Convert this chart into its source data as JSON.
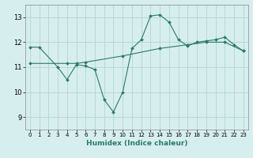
{
  "title": "",
  "xlabel": "Humidex (Indice chaleur)",
  "ylabel": "",
  "bg_color": "#d7eeee",
  "grid_color": "#b8d8d8",
  "line_color": "#2a7a6a",
  "xlim": [
    -0.5,
    23.5
  ],
  "ylim": [
    8.5,
    13.5
  ],
  "yticks": [
    9,
    10,
    11,
    12,
    13
  ],
  "xticks": [
    0,
    1,
    2,
    3,
    4,
    5,
    6,
    7,
    8,
    9,
    10,
    11,
    12,
    13,
    14,
    15,
    16,
    17,
    18,
    19,
    20,
    21,
    22,
    23
  ],
  "line1_x": [
    0,
    1,
    3,
    4,
    5,
    6,
    7,
    8,
    9,
    10,
    11,
    12,
    13,
    14,
    15,
    16,
    17,
    18,
    19,
    20,
    21,
    22,
    23
  ],
  "line1_y": [
    11.8,
    11.8,
    11.0,
    10.5,
    11.1,
    11.05,
    10.9,
    9.7,
    9.2,
    10.0,
    11.75,
    12.1,
    13.05,
    13.1,
    12.8,
    12.1,
    11.85,
    12.0,
    12.05,
    12.1,
    12.2,
    11.9,
    11.65
  ],
  "line2_x": [
    0,
    4,
    5,
    6,
    10,
    14,
    17,
    19,
    21,
    23
  ],
  "line2_y": [
    11.15,
    11.15,
    11.15,
    11.2,
    11.45,
    11.75,
    11.9,
    12.0,
    12.0,
    11.65
  ]
}
